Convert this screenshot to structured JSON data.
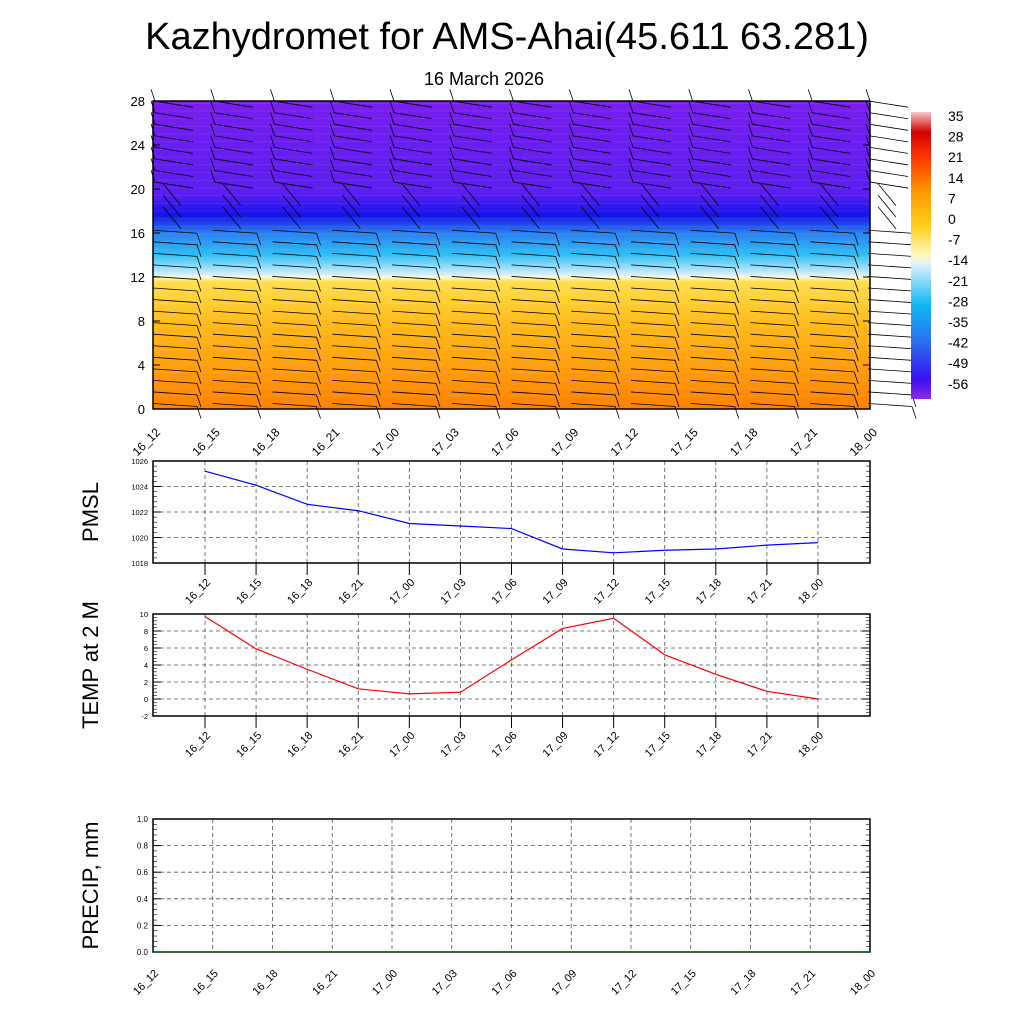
{
  "title": "Kazhydromet for AMS-Ahai(45.611 63.281)",
  "subtitle": "16 March 2026",
  "chart_data": [
    {
      "type": "heatmap",
      "name": "temperature-cross-section",
      "ylabel": "",
      "ylim": [
        0,
        28
      ],
      "yticks": [
        "0",
        "4",
        "8",
        "12",
        "16",
        "20",
        "24",
        "28"
      ],
      "xticks": [
        "16_12",
        "16_15",
        "16_18",
        "16_21",
        "17_00",
        "17_03",
        "17_06",
        "17_09",
        "17_12",
        "17_15",
        "17_18",
        "17_21",
        "18_00"
      ],
      "colorbar_labels": [
        "35",
        "28",
        "21",
        "14",
        "7",
        "0",
        "-7",
        "-14",
        "-21",
        "-28",
        "-35",
        "-42",
        "-49",
        "-56"
      ],
      "profile": [
        [
          0,
          "#ff8000"
        ],
        [
          4,
          "#ffa010"
        ],
        [
          8,
          "#ffbc1c"
        ],
        [
          11.6,
          "#ffe050"
        ],
        [
          12,
          "#fffbd0"
        ],
        [
          12.2,
          "#d6eefa"
        ],
        [
          14,
          "#30c0f4"
        ],
        [
          16,
          "#2a80f0"
        ],
        [
          17.6,
          "#1414ea"
        ],
        [
          19.5,
          "#5a1ef0"
        ],
        [
          28,
          "#7a1ef0"
        ]
      ]
    },
    {
      "type": "line",
      "name": "pmsl",
      "ylabel": "PMSL",
      "ylim": [
        1018,
        1026
      ],
      "yticks": [
        "1018",
        "1020",
        "1022",
        "1024",
        "1026"
      ],
      "categories": [
        "16_12",
        "16_15",
        "16_18",
        "16_21",
        "17_00",
        "17_03",
        "17_06",
        "17_09",
        "17_12",
        "17_15",
        "17_18",
        "17_21",
        "18_00"
      ],
      "values": [
        1025.2,
        1024.1,
        1022.6,
        1022.1,
        1021.1,
        1020.9,
        1020.7,
        1019.1,
        1018.8,
        1019.0,
        1019.1,
        1019.4,
        1019.6
      ],
      "color": "#0000ff"
    },
    {
      "type": "line",
      "name": "temp-2m",
      "ylabel": "TEMP at 2 M",
      "ylim": [
        -2,
        10
      ],
      "yticks": [
        "-2",
        "0",
        "2",
        "4",
        "6",
        "8",
        "10"
      ],
      "categories": [
        "16_12",
        "16_15",
        "16_18",
        "16_21",
        "17_00",
        "17_03",
        "17_06",
        "17_09",
        "17_12",
        "17_15",
        "17_18",
        "17_21",
        "18_00"
      ],
      "values": [
        9.7,
        5.9,
        3.5,
        1.2,
        0.6,
        0.8,
        4.6,
        8.3,
        9.5,
        5.2,
        2.9,
        0.9,
        0.0
      ],
      "color": "#ff0000"
    },
    {
      "type": "line",
      "name": "precip",
      "ylabel": "PRECIP, mm",
      "ylim": [
        0,
        1
      ],
      "yticks": [
        "0.0",
        "0.2",
        "0.4",
        "0.6",
        "0.8",
        "1.0"
      ],
      "categories": [
        "16_12",
        "16_15",
        "16_18",
        "16_21",
        "17_00",
        "17_03",
        "17_06",
        "17_09",
        "17_12",
        "17_15",
        "17_18",
        "17_21",
        "18_00"
      ],
      "values": [
        0,
        0,
        0,
        0,
        0,
        0,
        0,
        0,
        0,
        0,
        0,
        0,
        0
      ],
      "color": "#006400"
    }
  ]
}
